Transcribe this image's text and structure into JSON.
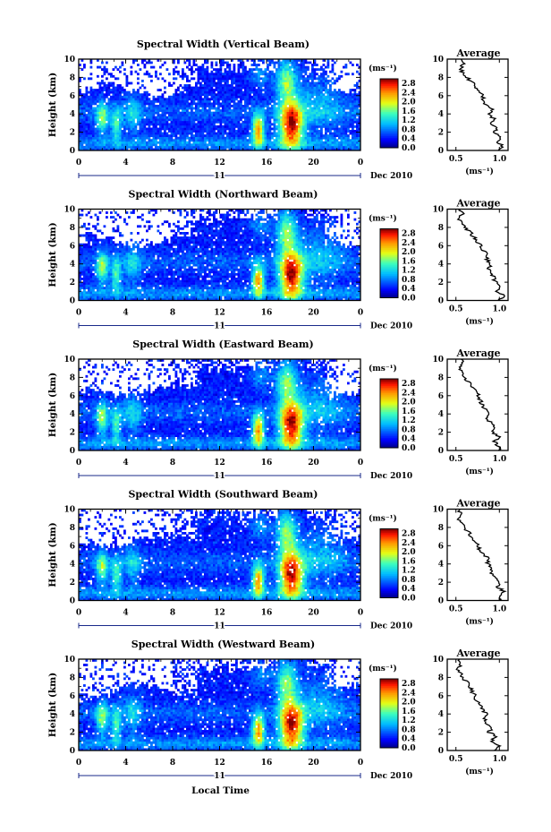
{
  "chart_data": [
    {
      "type": "heatmap",
      "title": "Spectral Width (Vertical Beam)",
      "ylabel": "Height (km)",
      "xlabel": "",
      "xlim": [
        0,
        24
      ],
      "ylim": [
        0,
        10
      ],
      "xticks": [
        "0",
        "4",
        "8",
        "12",
        "16",
        "20",
        "0"
      ],
      "yticks": [
        "0",
        "2",
        "4",
        "6",
        "8",
        "10"
      ],
      "day_label": "11",
      "date_label": "Dec 2010",
      "colorbar": {
        "unit": "(ms⁻¹)",
        "ticks": [
          "0.0",
          "0.4",
          "0.8",
          "1.2",
          "1.6",
          "2.0",
          "2.4",
          "2.8"
        ],
        "range": [
          0,
          3.0
        ]
      },
      "profile": {
        "title": "Average",
        "xlabel": "(ms⁻¹)",
        "xlim": [
          0.4,
          1.1
        ],
        "xticks": [
          "0.5",
          "1.0"
        ],
        "yticks": [
          "0",
          "2",
          "4",
          "6",
          "8",
          "10"
        ],
        "height": [
          0,
          0.5,
          1,
          1.5,
          2,
          2.5,
          3,
          3.5,
          4,
          4.5,
          5,
          5.5,
          6,
          6.5,
          7,
          7.5,
          8,
          8.5,
          9,
          9.5,
          10
        ],
        "values": [
          1.0,
          1.04,
          0.98,
          1.02,
          0.95,
          0.97,
          0.9,
          0.93,
          0.88,
          0.92,
          0.85,
          0.82,
          0.8,
          0.76,
          0.72,
          0.68,
          0.62,
          0.58,
          0.55,
          0.6,
          0.56
        ]
      }
    },
    {
      "type": "heatmap",
      "title": "Spectral Width (Northward Beam)",
      "ylabel": "Height (km)",
      "xlabel": "",
      "xlim": [
        0,
        24
      ],
      "ylim": [
        0,
        10
      ],
      "xticks": [
        "0",
        "4",
        "8",
        "12",
        "16",
        "20",
        "0"
      ],
      "yticks": [
        "0",
        "2",
        "4",
        "6",
        "8",
        "10"
      ],
      "day_label": "11",
      "date_label": "Dec 2010",
      "colorbar": {
        "unit": "(ms⁻¹)",
        "ticks": [
          "0.0",
          "0.4",
          "0.8",
          "1.2",
          "1.6",
          "2.0",
          "2.4",
          "2.8"
        ],
        "range": [
          0,
          3.0
        ]
      },
      "profile": {
        "title": "Average",
        "xlabel": "(ms⁻¹)",
        "xlim": [
          0.4,
          1.1
        ],
        "xticks": [
          "0.5",
          "1.0"
        ],
        "yticks": [
          "0",
          "2",
          "4",
          "6",
          "8",
          "10"
        ],
        "height": [
          0,
          0.5,
          1,
          1.5,
          2,
          2.5,
          3,
          3.5,
          4,
          4.5,
          5,
          5.5,
          6,
          6.5,
          7,
          7.5,
          8,
          8.5,
          9,
          9.5,
          10
        ],
        "values": [
          1.0,
          1.05,
          0.97,
          1.0,
          0.96,
          0.93,
          0.92,
          0.88,
          0.9,
          0.85,
          0.87,
          0.82,
          0.78,
          0.74,
          0.7,
          0.66,
          0.6,
          0.56,
          0.53,
          0.57,
          0.55
        ]
      }
    },
    {
      "type": "heatmap",
      "title": "Spectral Width (Eastward Beam)",
      "ylabel": "Height (km)",
      "xlabel": "",
      "xlim": [
        0,
        24
      ],
      "ylim": [
        0,
        10
      ],
      "xticks": [
        "0",
        "4",
        "8",
        "12",
        "16",
        "20",
        "0"
      ],
      "yticks": [
        "0",
        "2",
        "4",
        "6",
        "8",
        "10"
      ],
      "day_label": "11",
      "date_label": "Dec 2010",
      "colorbar": {
        "unit": "(ms⁻¹)",
        "ticks": [
          "0.0",
          "0.4",
          "0.8",
          "1.2",
          "1.6",
          "2.0",
          "2.4",
          "2.8"
        ],
        "range": [
          0,
          3.0
        ]
      },
      "profile": {
        "title": "Average",
        "xlabel": "(ms⁻¹)",
        "xlim": [
          0.4,
          1.1
        ],
        "xticks": [
          "0.5",
          "1.0"
        ],
        "yticks": [
          "0",
          "2",
          "4",
          "6",
          "8",
          "10"
        ],
        "height": [
          0,
          0.5,
          1,
          1.5,
          2,
          2.5,
          3,
          3.5,
          4,
          4.5,
          5,
          5.5,
          6,
          6.5,
          7,
          7.5,
          8,
          8.5,
          9,
          9.5,
          10
        ],
        "values": [
          1.0,
          0.98,
          0.95,
          0.99,
          0.93,
          0.95,
          0.9,
          0.86,
          0.9,
          0.84,
          0.8,
          0.78,
          0.76,
          0.72,
          0.68,
          0.64,
          0.6,
          0.57,
          0.55,
          0.58,
          0.56
        ]
      }
    },
    {
      "type": "heatmap",
      "title": "Spectral Width (Southward Beam)",
      "ylabel": "Height (km)",
      "xlabel": "",
      "xlim": [
        0,
        24
      ],
      "ylim": [
        0,
        10
      ],
      "xticks": [
        "0",
        "4",
        "8",
        "12",
        "16",
        "20",
        "0"
      ],
      "yticks": [
        "0",
        "2",
        "4",
        "6",
        "8",
        "10"
      ],
      "day_label": "11",
      "date_label": "Dec 2010",
      "colorbar": {
        "unit": "(ms⁻¹)",
        "ticks": [
          "0.0",
          "0.4",
          "0.8",
          "1.2",
          "1.6",
          "2.0",
          "2.4",
          "2.8"
        ],
        "range": [
          0,
          3.0
        ]
      },
      "profile": {
        "title": "Average",
        "xlabel": "(ms⁻¹)",
        "xlim": [
          0.4,
          1.1
        ],
        "xticks": [
          "0.5",
          "1.0"
        ],
        "yticks": [
          "0",
          "2",
          "4",
          "6",
          "8",
          "10"
        ],
        "height": [
          0,
          0.5,
          1,
          1.5,
          2,
          2.5,
          3,
          3.5,
          4,
          4.5,
          5,
          5.5,
          6,
          6.5,
          7,
          7.5,
          8,
          8.5,
          9,
          9.5,
          10
        ],
        "values": [
          1.0,
          1.03,
          1.05,
          0.98,
          1.0,
          0.94,
          0.9,
          0.92,
          0.86,
          0.88,
          0.82,
          0.78,
          0.75,
          0.72,
          0.68,
          0.64,
          0.6,
          0.56,
          0.53,
          0.55,
          0.54
        ]
      }
    },
    {
      "type": "heatmap",
      "title": "Spectral Width (Westward Beam)",
      "ylabel": "Height (km)",
      "xlabel": "Local Time",
      "xlim": [
        0,
        24
      ],
      "ylim": [
        0,
        10
      ],
      "xticks": [
        "0",
        "4",
        "8",
        "12",
        "16",
        "20",
        "0"
      ],
      "yticks": [
        "0",
        "2",
        "4",
        "6",
        "8",
        "10"
      ],
      "day_label": "11",
      "date_label": "Dec 2010",
      "colorbar": {
        "unit": "(ms⁻¹)",
        "ticks": [
          "0.0",
          "0.4",
          "0.8",
          "1.2",
          "1.6",
          "2.0",
          "2.4",
          "2.8"
        ],
        "range": [
          0,
          3.0
        ]
      },
      "profile": {
        "title": "Average",
        "xlabel": "(ms⁻¹)",
        "xlim": [
          0.4,
          1.1
        ],
        "xticks": [
          "0.5",
          "1.0"
        ],
        "yticks": [
          "0",
          "2",
          "4",
          "6",
          "8",
          "10"
        ],
        "height": [
          0,
          0.5,
          1,
          1.5,
          2,
          2.5,
          3,
          3.5,
          4,
          4.5,
          5,
          5.5,
          6,
          6.5,
          7,
          7.5,
          8,
          8.5,
          9,
          9.5,
          10
        ],
        "values": [
          0.95,
          1.0,
          0.9,
          0.97,
          0.88,
          0.92,
          0.86,
          0.82,
          0.85,
          0.8,
          0.78,
          0.74,
          0.72,
          0.68,
          0.66,
          0.62,
          0.58,
          0.55,
          0.52,
          0.56,
          0.54
        ]
      }
    }
  ]
}
